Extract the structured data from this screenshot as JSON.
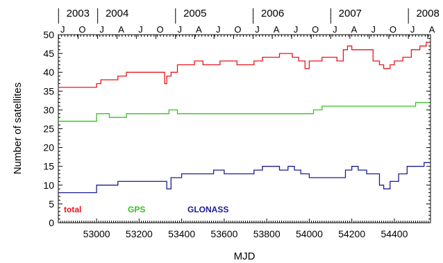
{
  "chart_data": {
    "type": "line",
    "xlabel": "MJD",
    "ylabel": "Number of satellites",
    "xlim": [
      52820,
      54570
    ],
    "ylim": [
      0,
      50
    ],
    "x_ticks": [
      53000,
      53200,
      53400,
      53600,
      53800,
      54000,
      54200,
      54400
    ],
    "y_ticks": [
      0,
      5,
      10,
      15,
      20,
      25,
      30,
      35,
      40,
      45,
      50
    ],
    "top_axis": {
      "years": [
        {
          "label": "2003",
          "mjd": 52821
        },
        {
          "label": "2004",
          "mjd": 53005
        },
        {
          "label": "2005",
          "mjd": 53371
        },
        {
          "label": "2006",
          "mjd": 53736
        },
        {
          "label": "2007",
          "mjd": 54101
        },
        {
          "label": "2008",
          "mjd": 54466
        }
      ],
      "months": [
        {
          "label": "J",
          "mjd": 52821
        },
        {
          "label": "O",
          "mjd": 52913
        },
        {
          "label": "J",
          "mjd": 53005
        },
        {
          "label": "A",
          "mjd": 53096
        },
        {
          "label": "J",
          "mjd": 53187
        },
        {
          "label": "O",
          "mjd": 53279
        },
        {
          "label": "J",
          "mjd": 53371
        },
        {
          "label": "A",
          "mjd": 53461
        },
        {
          "label": "J",
          "mjd": 53552
        },
        {
          "label": "O",
          "mjd": 53644
        },
        {
          "label": "J",
          "mjd": 53736
        },
        {
          "label": "A",
          "mjd": 53826
        },
        {
          "label": "J",
          "mjd": 53917
        },
        {
          "label": "O",
          "mjd": 54009
        },
        {
          "label": "J",
          "mjd": 54101
        },
        {
          "label": "A",
          "mjd": 54191
        },
        {
          "label": "J",
          "mjd": 54282
        },
        {
          "label": "O",
          "mjd": 54374
        },
        {
          "label": "J",
          "mjd": 54466
        },
        {
          "label": "A",
          "mjd": 54557
        }
      ]
    },
    "series": [
      {
        "name": "total",
        "color": "#e8141b",
        "x": [
          52820,
          52860,
          52900,
          52950,
          52980,
          53000,
          53020,
          53060,
          53100,
          53140,
          53180,
          53220,
          53260,
          53300,
          53320,
          53330,
          53350,
          53380,
          53420,
          53460,
          53500,
          53540,
          53580,
          53620,
          53660,
          53700,
          53740,
          53780,
          53820,
          53860,
          53900,
          53920,
          53950,
          53980,
          54000,
          54020,
          54060,
          54100,
          54130,
          54160,
          54180,
          54200,
          54220,
          54260,
          54300,
          54330,
          54350,
          54380,
          54400,
          54440,
          54480,
          54520,
          54550,
          54565
        ],
        "y": [
          36,
          36,
          36,
          36,
          36,
          37,
          38,
          38,
          39,
          40,
          40,
          40,
          40,
          40,
          37,
          39,
          40,
          42,
          42,
          43,
          42,
          42,
          43,
          43,
          42,
          42,
          43,
          44,
          44,
          45,
          45,
          44,
          43,
          41,
          43,
          43,
          44,
          44,
          43,
          46,
          47,
          46,
          46,
          46,
          43,
          42,
          41,
          42,
          43,
          44,
          46,
          47,
          48,
          48
        ]
      },
      {
        "name": "GPS",
        "color": "#33c419",
        "x": [
          52820,
          52900,
          52960,
          53000,
          53020,
          53060,
          53100,
          53140,
          53180,
          53220,
          53260,
          53300,
          53340,
          53380,
          53420,
          53460,
          53500,
          53540,
          53580,
          53620,
          53660,
          53700,
          53740,
          53780,
          53820,
          53860,
          53900,
          53940,
          53980,
          54020,
          54060,
          54100,
          54140,
          54180,
          54220,
          54260,
          54300,
          54340,
          54380,
          54420,
          54460,
          54500,
          54540,
          54565
        ],
        "y": [
          27,
          27,
          27,
          29,
          29,
          28,
          28,
          29,
          29,
          29,
          29,
          29,
          30,
          29,
          29,
          29,
          29,
          29,
          29,
          29,
          29,
          29,
          29,
          29,
          29,
          29,
          29,
          29,
          29,
          30,
          31,
          31,
          31,
          31,
          31,
          31,
          31,
          31,
          31,
          31,
          31,
          32,
          32,
          32
        ]
      },
      {
        "name": "GLONASS",
        "color": "#1b1b96",
        "x": [
          52820,
          52860,
          52900,
          52940,
          52980,
          53000,
          53020,
          53060,
          53100,
          53140,
          53180,
          53220,
          53260,
          53300,
          53330,
          53350,
          53400,
          53450,
          53500,
          53550,
          53600,
          53650,
          53700,
          53740,
          53780,
          53820,
          53860,
          53900,
          53930,
          53960,
          54000,
          54030,
          54060,
          54100,
          54140,
          54170,
          54200,
          54230,
          54270,
          54300,
          54330,
          54350,
          54380,
          54420,
          54460,
          54500,
          54540,
          54565
        ],
        "y": [
          8,
          8,
          8,
          8,
          8,
          10,
          10,
          10,
          11,
          11,
          11,
          11,
          11,
          11,
          9,
          12,
          13,
          13,
          13,
          14,
          13,
          13,
          13,
          14,
          15,
          15,
          14,
          15,
          14,
          13,
          12,
          12,
          12,
          12,
          12,
          14,
          15,
          14,
          13,
          13,
          10,
          9,
          11,
          13,
          15,
          15,
          16,
          16
        ]
      }
    ],
    "legend": [
      {
        "label": "total",
        "color": "#e8141b"
      },
      {
        "label": "GPS",
        "color": "#33c419"
      },
      {
        "label": "GLONASS",
        "color": "#1b1b96"
      }
    ]
  }
}
